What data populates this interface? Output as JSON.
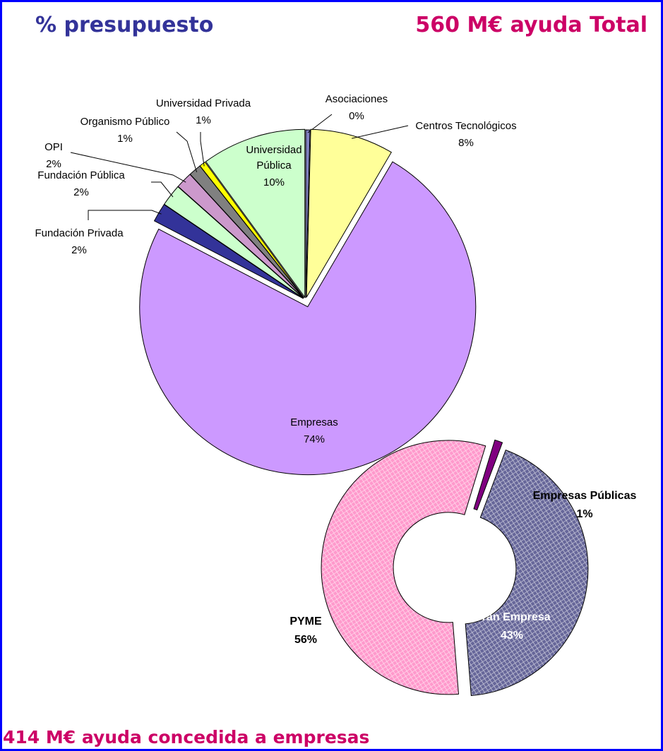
{
  "chart_data": [
    {
      "type": "pie",
      "title": "% presupuesto",
      "subtitle": "560 M€ ayuda Total",
      "categories": [
        "Asociaciones",
        "Centros Tecnológicos",
        "Empresas",
        "Fundación Privada",
        "Fundación Pública",
        "OPI",
        "Organismo Público",
        "Universidad Privada",
        "Universidad Pública"
      ],
      "values": [
        0.4,
        8,
        74,
        1.8,
        2.1,
        1.6,
        1.2,
        0.6,
        10
      ],
      "value_labels": [
        "0%",
        "8%",
        "74%",
        "2%",
        "2%",
        "2%",
        "1%",
        "1%",
        "10%"
      ],
      "colors": [
        "#7f7fbf",
        "#ffff99",
        "#cc99ff",
        "#333399",
        "#ccffcc",
        "#cc99cc",
        "#808080",
        "#ffff00",
        "#ccffcc"
      ]
    },
    {
      "type": "donut",
      "title": "414 M€ ayuda concedida a empresas",
      "categories": [
        "Empresas Públicas",
        "Gran Empresa",
        "PYME"
      ],
      "values": [
        1,
        43,
        56
      ],
      "value_labels": [
        "1%",
        "43%",
        "56%"
      ],
      "colors": [
        "#800080",
        "#666699",
        "#ff99cc"
      ]
    }
  ]
}
